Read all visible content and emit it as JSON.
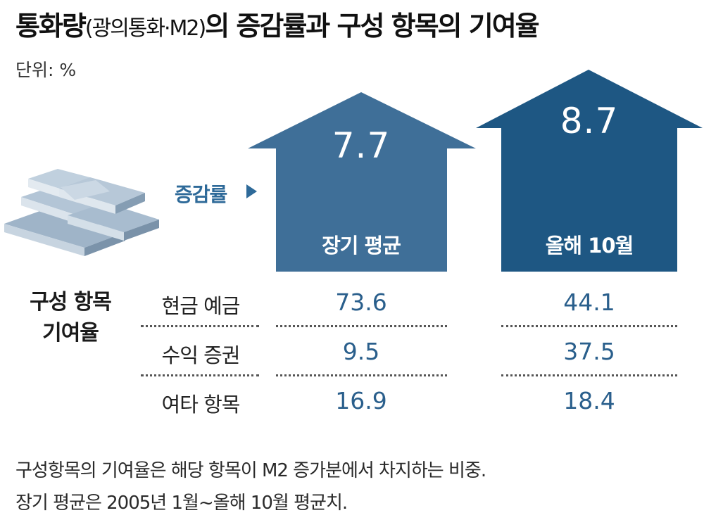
{
  "title_main": "통화량",
  "title_paren": "(광의통화·M2)",
  "title_rest": "의 증감률과 구성 항목의 기여율",
  "unit": "단위: %",
  "rate_label": "증감률",
  "section_title_line1": "구성 항목",
  "section_title_line2": "기여율",
  "chart_data": {
    "type": "table",
    "columns": [
      "장기 평균",
      "올해 10월"
    ],
    "growth_rate": [
      7.7,
      8.7
    ],
    "rows": [
      {
        "label": "현금 예금",
        "values": [
          "73.6",
          "44.1"
        ]
      },
      {
        "label": "수익 증권",
        "values": [
          "9.5",
          "37.5"
        ]
      },
      {
        "label": "여타 항목",
        "values": [
          "16.9",
          "18.4"
        ]
      }
    ]
  },
  "houses": [
    {
      "value": "7.7",
      "label": "장기 평균",
      "color": "#3f6f98"
    },
    {
      "value": "8.7",
      "label": "올해 10월",
      "color": "#1e5783"
    }
  ],
  "rows": [
    {
      "label": "현금 예금",
      "v1": "73.6",
      "v2": "44.1"
    },
    {
      "label": "수익 증권",
      "v1": "9.5",
      "v2": "37.5"
    },
    {
      "label": "여타 항목",
      "v1": "16.9",
      "v2": "18.4"
    }
  ],
  "notes": [
    "구성항목의 기여율은 해당 항목이 M2 증가분에서 차지하는 비중.",
    "장기 평균은 2005년 1월~올해 10월 평균치."
  ]
}
